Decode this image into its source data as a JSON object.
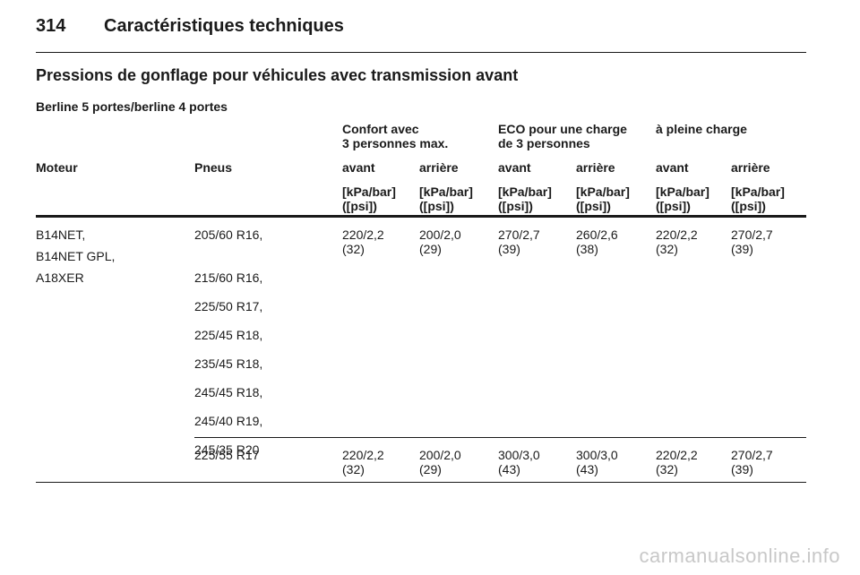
{
  "header": {
    "page_number": "314",
    "chapter_title": "Caractéristiques techniques"
  },
  "section_title": "Pressions de gonflage pour véhicules avec transmission avant",
  "subsection_title": "Berline 5 portes/berline 4 portes",
  "table": {
    "load_groups": [
      {
        "line1": "Confort avec",
        "line2": "3 personnes max."
      },
      {
        "line1": "ECO pour une charge",
        "line2": "de 3 personnes"
      },
      {
        "line1": "à pleine charge",
        "line2": ""
      }
    ],
    "col_engine": "Moteur",
    "col_tyres": "Pneus",
    "axles": [
      "avant",
      "arrière",
      "avant",
      "arrière",
      "avant",
      "arrière"
    ],
    "unit_line1": "[kPa/bar]",
    "unit_line2": "([psi])",
    "rows": [
      {
        "engines": [
          "B14NET,",
          "B14NET GPL,",
          "A18XER"
        ],
        "tyres": [
          "205/60 R16,",
          "215/60 R16,",
          "225/50 R17,",
          "225/45 R18,",
          "235/45 R18,",
          "245/45 R18,",
          "245/40 R19,",
          "245/35 R20"
        ],
        "pressures": [
          {
            "kpa_bar": "220/2,2",
            "psi": "(32)"
          },
          {
            "kpa_bar": "200/2,0",
            "psi": "(29)"
          },
          {
            "kpa_bar": "270/2,7",
            "psi": "(39)"
          },
          {
            "kpa_bar": "260/2,6",
            "psi": "(38)"
          },
          {
            "kpa_bar": "220/2,2",
            "psi": "(32)"
          },
          {
            "kpa_bar": "270/2,7",
            "psi": "(39)"
          }
        ]
      },
      {
        "engines": [],
        "tyres": [
          "225/55 R17"
        ],
        "pressures": [
          {
            "kpa_bar": "220/2,2",
            "psi": "(32)"
          },
          {
            "kpa_bar": "200/2,0",
            "psi": "(29)"
          },
          {
            "kpa_bar": "300/3,0",
            "psi": "(43)"
          },
          {
            "kpa_bar": "300/3,0",
            "psi": "(43)"
          },
          {
            "kpa_bar": "220/2,2",
            "psi": "(32)"
          },
          {
            "kpa_bar": "270/2,7",
            "psi": "(39)"
          }
        ]
      }
    ]
  },
  "watermark": "carmanualsonline.info"
}
